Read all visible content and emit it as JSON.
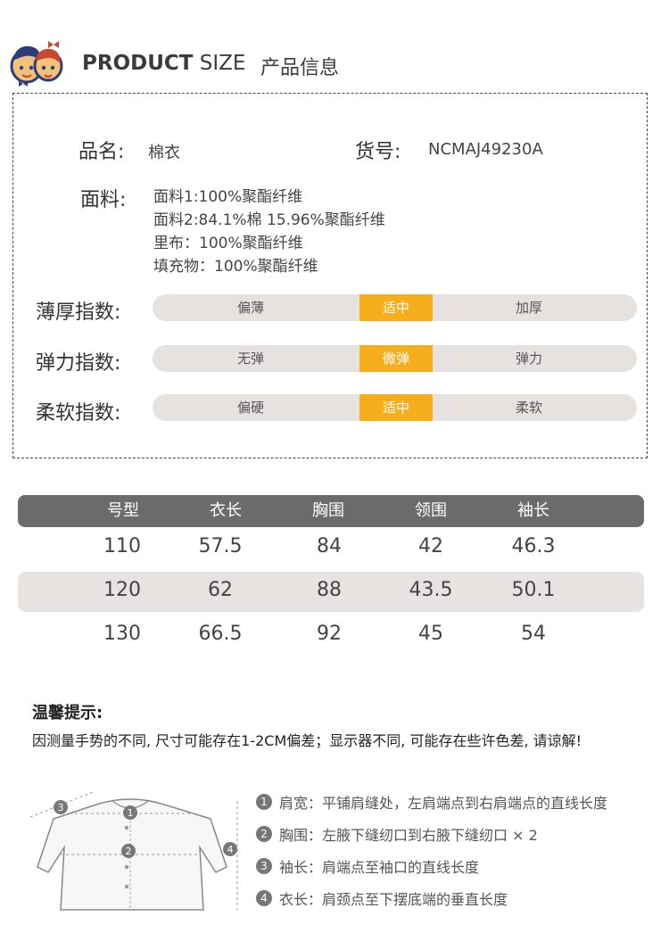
{
  "header": {
    "title_bold": "PRODUCT",
    "title_thin": "SIZE",
    "title_cn": "产品信息"
  },
  "info": {
    "name_label": "品名:",
    "name_value": "棉衣",
    "code_label": "货号:",
    "code_value": "NCMAJ49230A",
    "fabric_label": "面料:",
    "fabric_lines": [
      "面料1:100%聚酯纤维",
      "面料2:84.1%棉 15.96%聚酯纤维",
      "里布：100%聚酯纤维",
      "填充物：100%聚酯纤维"
    ]
  },
  "indices": [
    {
      "label": "薄厚指数:",
      "options": [
        "偏薄",
        "适中",
        "加厚"
      ]
    },
    {
      "label": "弹力指数:",
      "options": [
        "无弹",
        "微弹",
        "弹力"
      ]
    },
    {
      "label": "柔软指数:",
      "options": [
        "偏硬",
        "适中",
        "柔软"
      ]
    }
  ],
  "size_table": {
    "headers": [
      "号型",
      "衣长",
      "胸围",
      "领围",
      "袖长"
    ],
    "rows": [
      [
        "110",
        "57.5",
        "84",
        "42",
        "46.3"
      ],
      [
        "120",
        "62",
        "88",
        "43.5",
        "50.1"
      ],
      [
        "130",
        "66.5",
        "92",
        "45",
        "54"
      ]
    ]
  },
  "tips": {
    "title": "温馨提示:",
    "body": "因测量手势的不同, 尺寸可能存在1-2CM偏差；显示器不同, 可能存在些许色差, 请谅解!"
  },
  "measure": {
    "items": [
      {
        "num": "1",
        "text": "肩宽：平铺肩缝处，左肩端点到右肩端点的直线长度"
      },
      {
        "num": "2",
        "text": "胸围：左腋下缝纫口到右腋下缝纫口 × 2"
      },
      {
        "num": "3",
        "text": "袖长：肩端点至袖口的直线长度"
      },
      {
        "num": "4",
        "text": "衣长：肩颈点至下摆底端的垂直长度"
      }
    ],
    "diagram_marks": [
      "1",
      "2",
      "3",
      "4"
    ]
  },
  "colors": {
    "accent": "#f6ae1d",
    "bar_bg": "#e6e2df",
    "table_head": "#6b6b6b",
    "row_band": "#e6e3e0"
  }
}
